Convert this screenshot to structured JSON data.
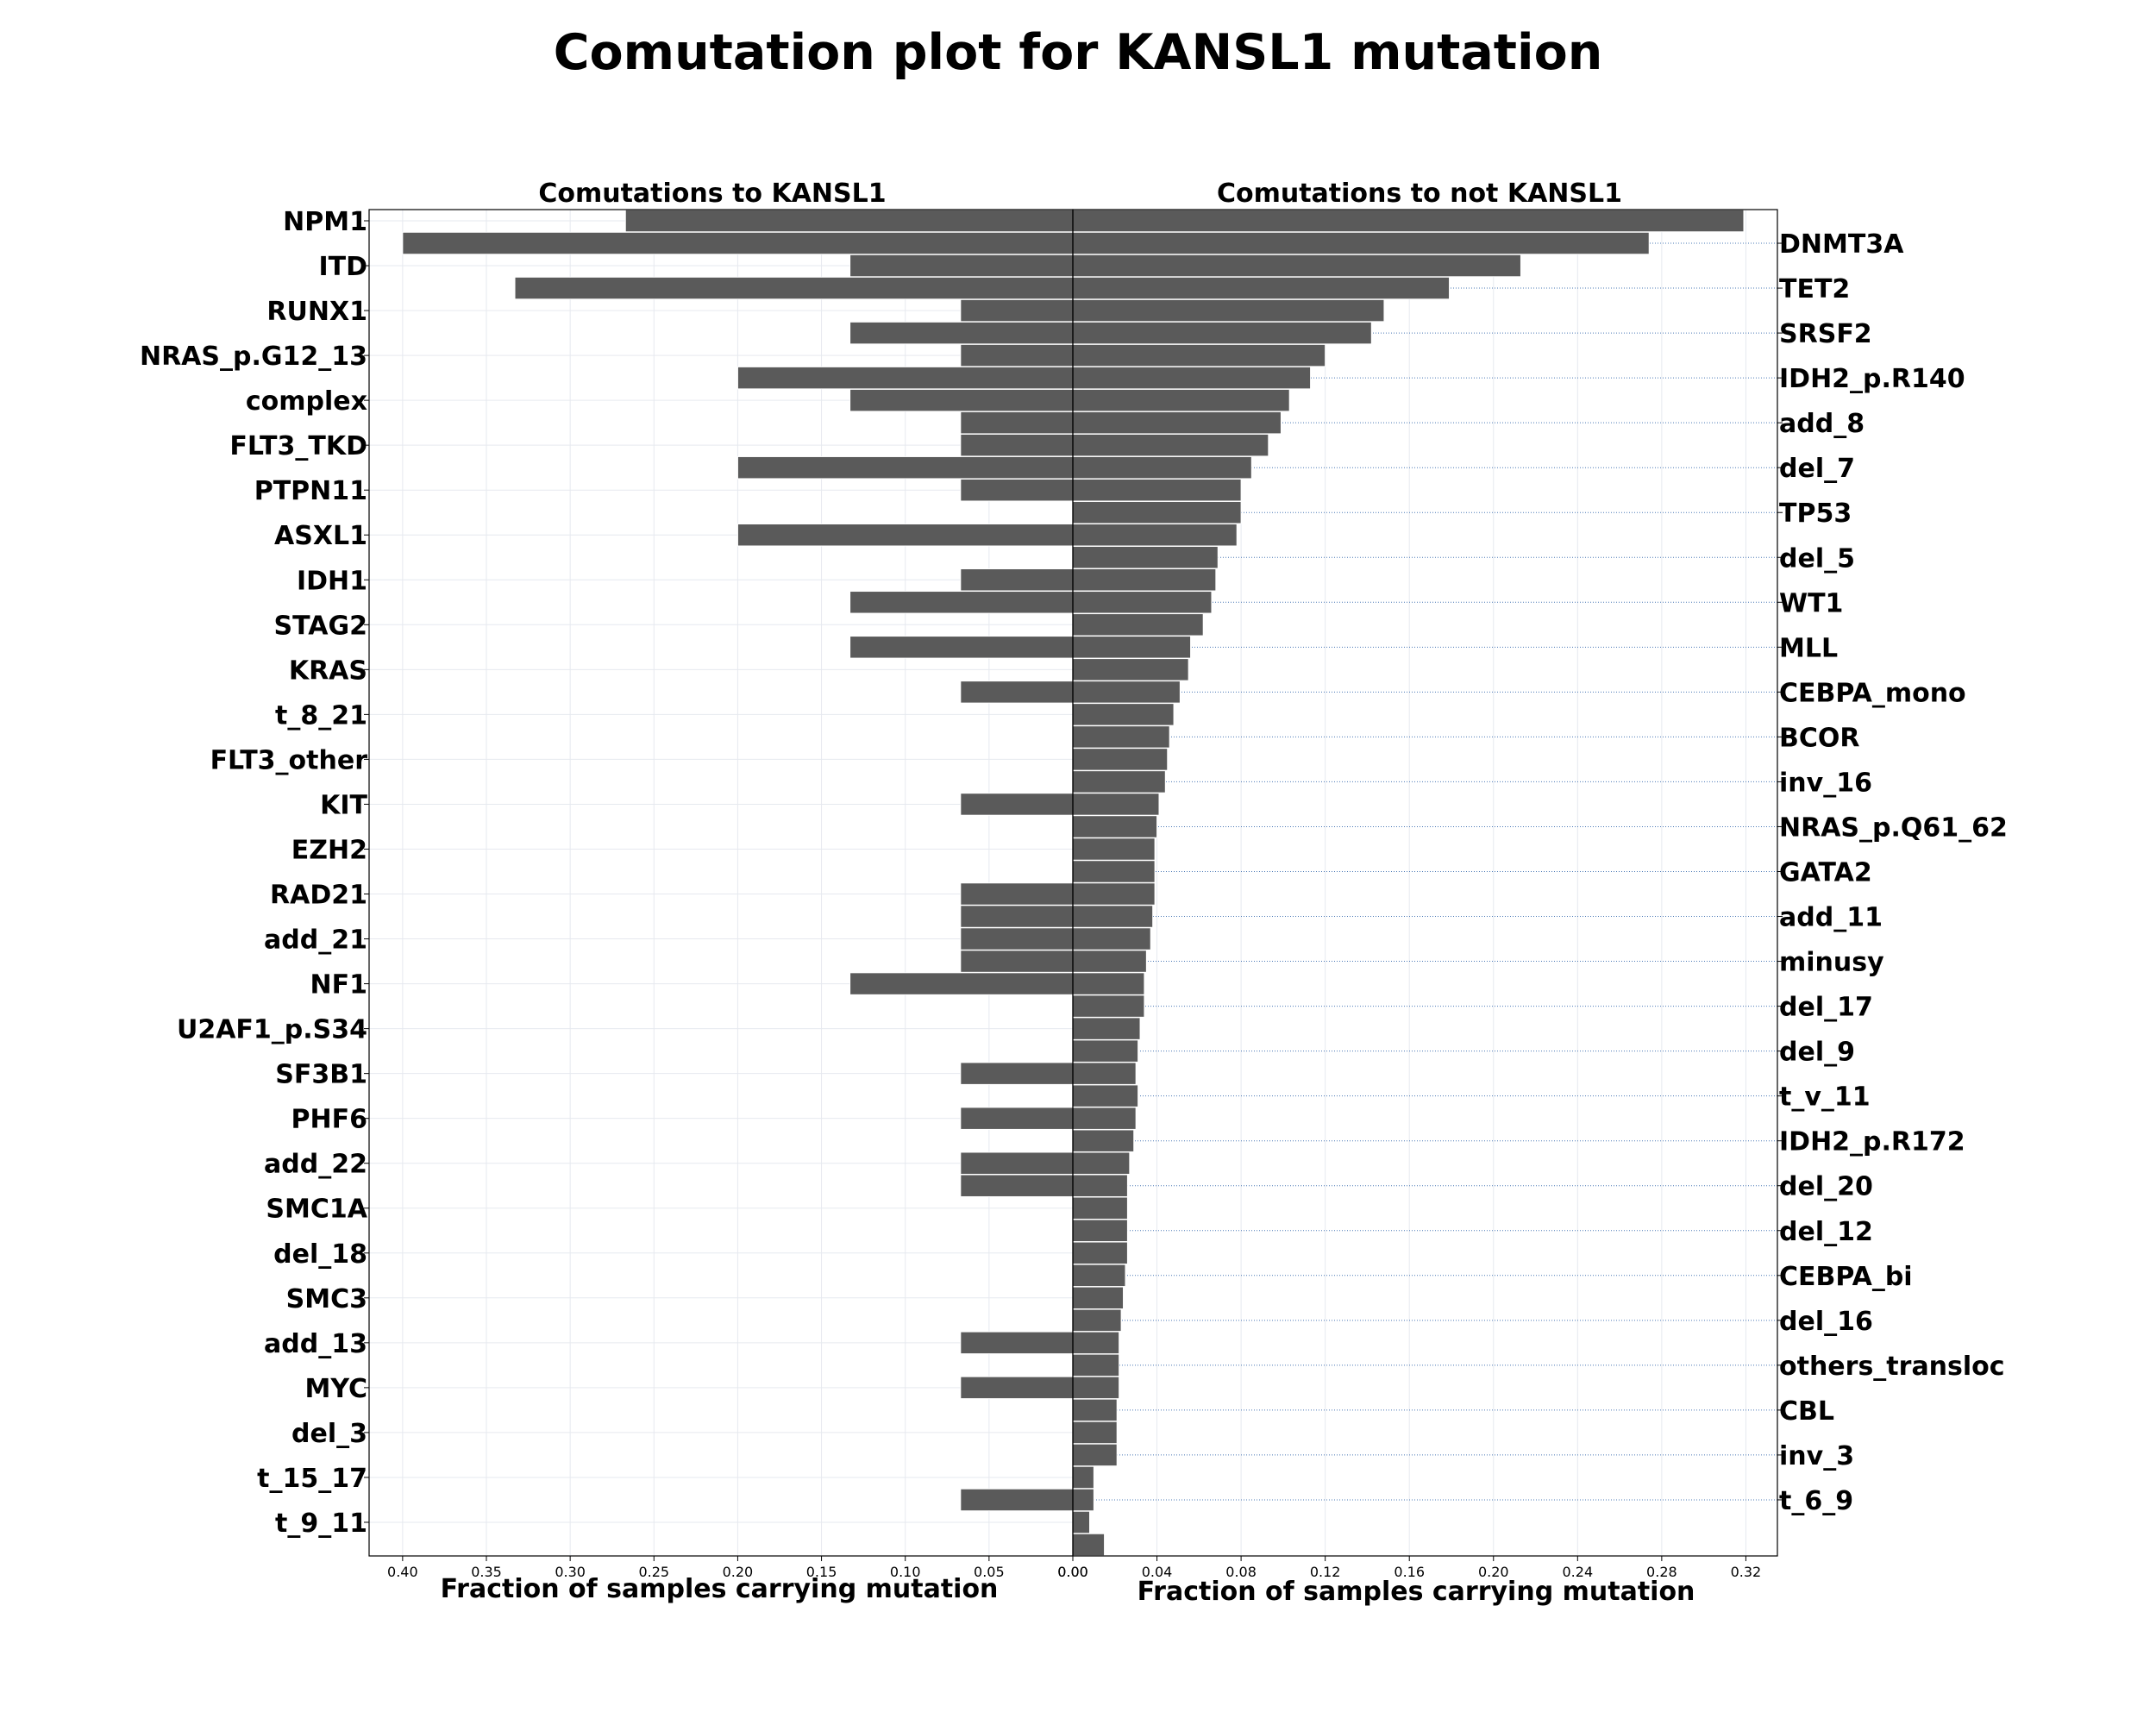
{
  "chart_data": {
    "type": "bar",
    "title": "Comutation plot for KANSL1 mutation",
    "xlabel": "Fraction of samples carrying mutation",
    "colors": {
      "bar": "#5a5a5a",
      "guide": "#4a78b5",
      "grid": "#e6e9ef"
    },
    "grid": true,
    "left": {
      "title": "Comutations to KANSL1",
      "xlim": [
        0,
        0.42
      ],
      "ticks": [
        "0.40",
        "0.35",
        "0.30",
        "0.25",
        "0.20",
        "0.15",
        "0.10",
        "0.05",
        "0.00"
      ],
      "labels": [
        "NPM1",
        "ITD",
        "RUNX1",
        "NRAS_p.G12_13",
        "complex",
        "FLT3_TKD",
        "PTPN11",
        "ASXL1",
        "IDH1",
        "STAG2",
        "KRAS",
        "t_8_21",
        "FLT3_other",
        "KIT",
        "EZH2",
        "RAD21",
        "add_21",
        "NF1",
        "U2AF1_p.S34",
        "SF3B1",
        "PHF6",
        "add_22",
        "SMC1A",
        "del_18",
        "SMC3",
        "add_13",
        "MYC",
        "del_3",
        "t_15_17",
        "t_9_11"
      ],
      "values": [
        0.267,
        0.4,
        0.133,
        0.333,
        0.067,
        0.133,
        0.067,
        0.2,
        0.133,
        0.067,
        0.067,
        0.2,
        0.067,
        0,
        0.2,
        0,
        0.067,
        0.133,
        0,
        0.133,
        0,
        0.067,
        0,
        0,
        0,
        0,
        0.067,
        0,
        0,
        0,
        0.067,
        0.067,
        0.067,
        0.067,
        0.133,
        0,
        0,
        0,
        0.067,
        0,
        0.067,
        0,
        0.067,
        0.067,
        0,
        0,
        0,
        0,
        0,
        0,
        0.067,
        0,
        0.067,
        0,
        0,
        0,
        0,
        0.067,
        0,
        0
      ]
    },
    "right": {
      "title": "Comutations to not KANSL1",
      "xlim": [
        0,
        0.335
      ],
      "ticks": [
        "0.00",
        "0.04",
        "0.08",
        "0.12",
        "0.16",
        "0.20",
        "0.24",
        "0.28",
        "0.32"
      ],
      "labels": [
        "DNMT3A",
        "TET2",
        "SRSF2",
        "IDH2_p.R140",
        "add_8",
        "del_7",
        "TP53",
        "del_5",
        "WT1",
        "MLL",
        "CEBPA_mono",
        "BCOR",
        "inv_16",
        "NRAS_p.Q61_62",
        "GATA2",
        "add_11",
        "minusy",
        "del_17",
        "del_9",
        "t_v_11",
        "IDH2_p.R172",
        "del_20",
        "del_12",
        "CEBPA_bi",
        "del_16",
        "others_transloc",
        "CBL",
        "inv_3",
        "t_6_9"
      ],
      "values": [
        0.319,
        0.274,
        0.213,
        0.179,
        0.148,
        0.142,
        0.12,
        0.113,
        0.103,
        0.099,
        0.093,
        0.085,
        0.08,
        0.08,
        0.078,
        0.069,
        0.068,
        0.066,
        0.062,
        0.056,
        0.055,
        0.051,
        0.048,
        0.046,
        0.045,
        0.044,
        0.041,
        0.04,
        0.039,
        0.039,
        0.039,
        0.038,
        0.037,
        0.035,
        0.034,
        0.034,
        0.032,
        0.031,
        0.03,
        0.031,
        0.03,
        0.029,
        0.027,
        0.026,
        0.026,
        0.026,
        0.026,
        0.025,
        0.024,
        0.023,
        0.022,
        0.022,
        0.022,
        0.021,
        0.021,
        0.021,
        0.01,
        0.01,
        0.008,
        0.015
      ]
    }
  }
}
